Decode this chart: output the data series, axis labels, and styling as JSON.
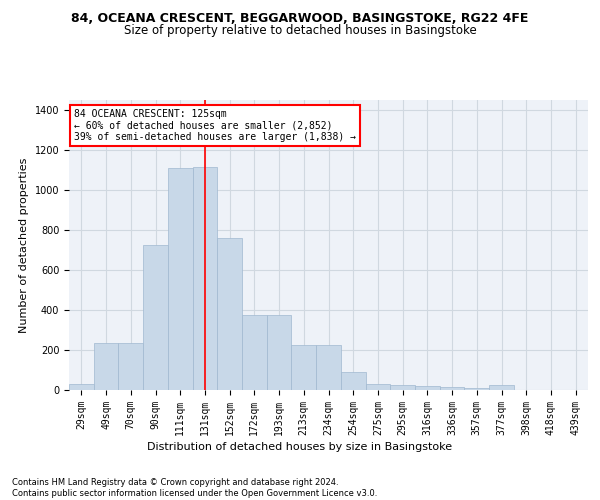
{
  "title_line1": "84, OCEANA CRESCENT, BEGGARWOOD, BASINGSTOKE, RG22 4FE",
  "title_line2": "Size of property relative to detached houses in Basingstoke",
  "xlabel": "Distribution of detached houses by size in Basingstoke",
  "ylabel": "Number of detached properties",
  "bar_labels": [
    "29sqm",
    "49sqm",
    "70sqm",
    "90sqm",
    "111sqm",
    "131sqm",
    "152sqm",
    "172sqm",
    "193sqm",
    "213sqm",
    "234sqm",
    "254sqm",
    "275sqm",
    "295sqm",
    "316sqm",
    "336sqm",
    "357sqm",
    "377sqm",
    "398sqm",
    "418sqm",
    "439sqm"
  ],
  "bar_heights": [
    30,
    235,
    235,
    725,
    1110,
    1115,
    760,
    375,
    375,
    225,
    225,
    90,
    30,
    25,
    20,
    15,
    10,
    25,
    0,
    0,
    0
  ],
  "bar_color": "#c8d8e8",
  "bar_edgecolor": "#a0b8d0",
  "grid_color": "#d0d8e0",
  "background_color": "#eef2f8",
  "vline_x": 5,
  "vline_color": "red",
  "annotation_text": "84 OCEANA CRESCENT: 125sqm\n← 60% of detached houses are smaller (2,852)\n39% of semi-detached houses are larger (1,838) →",
  "annotation_box_color": "white",
  "annotation_box_edgecolor": "red",
  "ylim": [
    0,
    1450
  ],
  "yticks": [
    0,
    200,
    400,
    600,
    800,
    1000,
    1200,
    1400
  ],
  "footnote": "Contains HM Land Registry data © Crown copyright and database right 2024.\nContains public sector information licensed under the Open Government Licence v3.0.",
  "title_fontsize": 9,
  "subtitle_fontsize": 8.5,
  "tick_fontsize": 7,
  "label_fontsize": 8,
  "footnote_fontsize": 6,
  "annotation_fontsize": 7
}
